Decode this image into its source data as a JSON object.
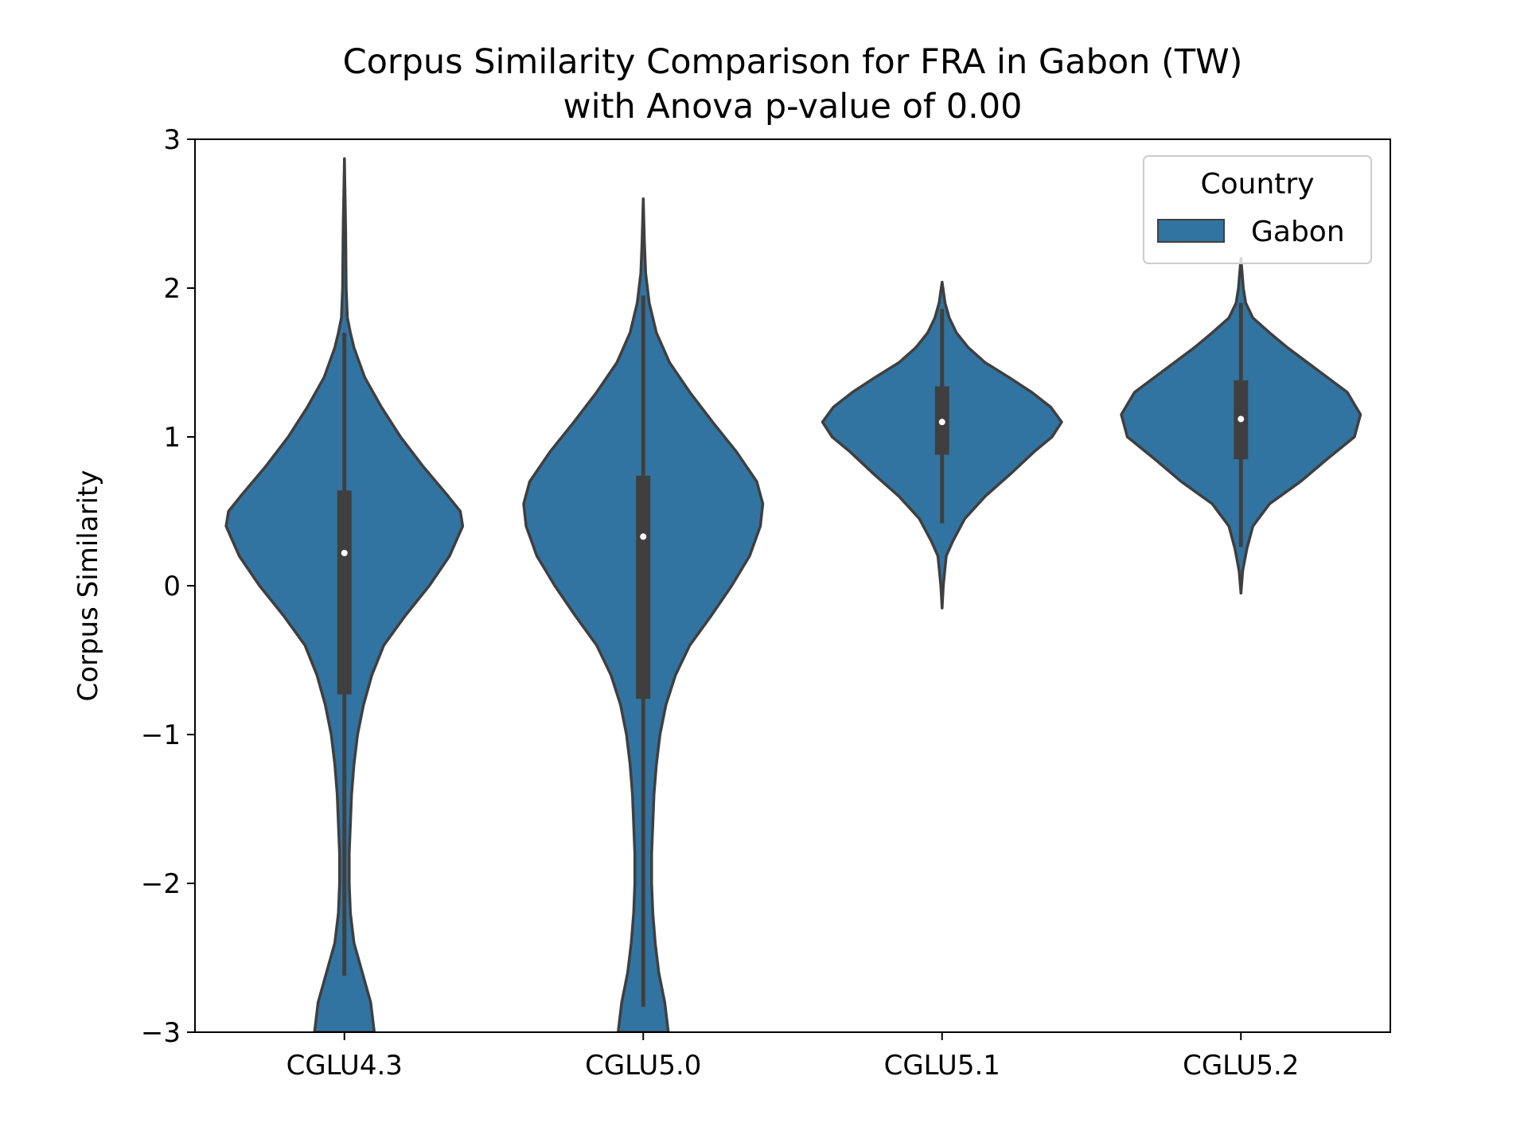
{
  "chart_data": {
    "type": "violin",
    "title_line1": "Corpus Similarity Comparison for FRA in Gabon (TW)",
    "title_line2": "with Anova p-value of 0.00",
    "xlabel": "",
    "ylabel": "Corpus Similarity",
    "ylim": [
      -3,
      3
    ],
    "yticks": [
      -3,
      -2,
      -1,
      0,
      1,
      2,
      3
    ],
    "ytick_labels": [
      "−3",
      "−2",
      "−1",
      "0",
      "1",
      "2",
      "3"
    ],
    "categories": [
      "CGLU4.3",
      "CGLU5.0",
      "CGLU5.1",
      "CGLU5.2"
    ],
    "legend": {
      "title": "Country",
      "entries": [
        "Gabon"
      ],
      "placement": "top-right"
    },
    "series": [
      {
        "name": "Gabon",
        "color": "#3274a1",
        "violins": [
          {
            "category": "CGLU4.3",
            "median": 0.22,
            "q1": -0.73,
            "q3": 0.64,
            "whisker_low": -2.62,
            "whisker_high": 1.7,
            "profile": [
              [
                -3.0,
                0.25
              ],
              [
                -2.8,
                0.22
              ],
              [
                -2.6,
                0.15
              ],
              [
                -2.4,
                0.08
              ],
              [
                -2.2,
                0.05
              ],
              [
                -2.0,
                0.04
              ],
              [
                -1.8,
                0.04
              ],
              [
                -1.6,
                0.05
              ],
              [
                -1.4,
                0.06
              ],
              [
                -1.2,
                0.08
              ],
              [
                -1.0,
                0.11
              ],
              [
                -0.8,
                0.16
              ],
              [
                -0.6,
                0.23
              ],
              [
                -0.4,
                0.33
              ],
              [
                -0.2,
                0.51
              ],
              [
                0.0,
                0.71
              ],
              [
                0.2,
                0.88
              ],
              [
                0.4,
                0.99
              ],
              [
                0.5,
                0.97
              ],
              [
                0.6,
                0.87
              ],
              [
                0.8,
                0.66
              ],
              [
                1.0,
                0.47
              ],
              [
                1.2,
                0.31
              ],
              [
                1.4,
                0.17
              ],
              [
                1.6,
                0.08
              ],
              [
                1.7,
                0.05
              ],
              [
                1.8,
                0.025
              ],
              [
                2.0,
                0.015
              ],
              [
                2.4,
                0.01
              ],
              [
                2.87,
                0.0
              ]
            ]
          },
          {
            "category": "CGLU5.0",
            "median": 0.33,
            "q1": -0.76,
            "q3": 0.74,
            "whisker_low": -2.83,
            "whisker_high": 1.95,
            "profile": [
              [
                -3.0,
                0.21
              ],
              [
                -2.8,
                0.18
              ],
              [
                -2.6,
                0.13
              ],
              [
                -2.4,
                0.1
              ],
              [
                -2.2,
                0.08
              ],
              [
                -2.0,
                0.07
              ],
              [
                -1.8,
                0.07
              ],
              [
                -1.6,
                0.08
              ],
              [
                -1.4,
                0.09
              ],
              [
                -1.2,
                0.11
              ],
              [
                -1.0,
                0.14
              ],
              [
                -0.8,
                0.19
              ],
              [
                -0.6,
                0.27
              ],
              [
                -0.4,
                0.39
              ],
              [
                -0.2,
                0.57
              ],
              [
                0.0,
                0.74
              ],
              [
                0.2,
                0.89
              ],
              [
                0.4,
                0.98
              ],
              [
                0.55,
                1.0
              ],
              [
                0.7,
                0.95
              ],
              [
                0.9,
                0.78
              ],
              [
                1.1,
                0.58
              ],
              [
                1.3,
                0.39
              ],
              [
                1.5,
                0.22
              ],
              [
                1.7,
                0.11
              ],
              [
                1.9,
                0.05
              ],
              [
                2.1,
                0.02
              ],
              [
                2.3,
                0.01
              ],
              [
                2.6,
                0.0
              ]
            ]
          },
          {
            "category": "CGLU5.1",
            "median": 1.1,
            "q1": 0.88,
            "q3": 1.34,
            "whisker_low": 0.42,
            "whisker_high": 1.86,
            "profile": [
              [
                -0.15,
                0.0
              ],
              [
                0.0,
                0.01
              ],
              [
                0.2,
                0.035
              ],
              [
                0.3,
                0.09
              ],
              [
                0.45,
                0.19
              ],
              [
                0.6,
                0.36
              ],
              [
                0.75,
                0.57
              ],
              [
                0.9,
                0.77
              ],
              [
                1.0,
                0.92
              ],
              [
                1.1,
                1.0
              ],
              [
                1.2,
                0.91
              ],
              [
                1.3,
                0.75
              ],
              [
                1.4,
                0.56
              ],
              [
                1.5,
                0.36
              ],
              [
                1.6,
                0.22
              ],
              [
                1.7,
                0.12
              ],
              [
                1.8,
                0.06
              ],
              [
                1.9,
                0.025
              ],
              [
                2.04,
                0.0
              ]
            ]
          },
          {
            "category": "CGLU5.2",
            "median": 1.12,
            "q1": 0.85,
            "q3": 1.38,
            "whisker_low": 0.26,
            "whisker_high": 1.9,
            "profile": [
              [
                -0.05,
                0.0
              ],
              [
                0.1,
                0.015
              ],
              [
                0.25,
                0.05
              ],
              [
                0.4,
                0.1
              ],
              [
                0.55,
                0.24
              ],
              [
                0.7,
                0.5
              ],
              [
                0.85,
                0.72
              ],
              [
                1.0,
                0.95
              ],
              [
                1.15,
                1.0
              ],
              [
                1.3,
                0.89
              ],
              [
                1.45,
                0.64
              ],
              [
                1.6,
                0.39
              ],
              [
                1.7,
                0.24
              ],
              [
                1.8,
                0.1
              ],
              [
                1.9,
                0.04
              ],
              [
                2.0,
                0.02
              ],
              [
                2.1,
                0.01
              ],
              [
                2.2,
                0.0
              ]
            ]
          }
        ]
      }
    ]
  }
}
